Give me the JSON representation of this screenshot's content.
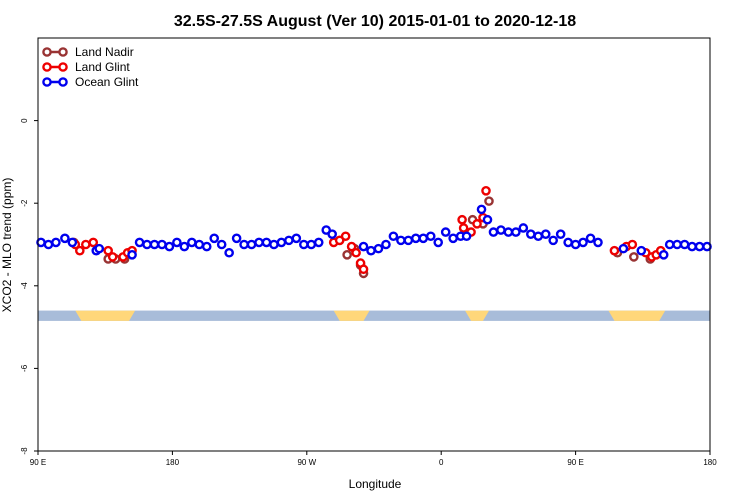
{
  "chart_data": {
    "type": "scatter",
    "title": "32.5S-27.5S August (Ver 10)   2015-01-01 to 2020-12-18",
    "xlabel": "Longitude",
    "ylabel": "XCO2 - MLO trend (ppm)",
    "x_ticks": [
      {
        "value": 90,
        "label": "90 E"
      },
      {
        "value": 180,
        "label": "180"
      },
      {
        "value": 270,
        "label": "90 W"
      },
      {
        "value": 360,
        "label": "0"
      },
      {
        "value": 450,
        "label": "90 E"
      },
      {
        "value": 540,
        "label": "180"
      }
    ],
    "y_ticks": [
      {
        "value": 0,
        "label": "0"
      },
      {
        "value": -2,
        "label": "-2"
      },
      {
        "value": -4,
        "label": "-4"
      },
      {
        "value": -6,
        "label": "-6"
      },
      {
        "value": -8,
        "label": "-8"
      }
    ],
    "xlim": [
      90,
      540
    ],
    "ylim": [
      -8,
      2
    ],
    "legend_position": "top-left",
    "land_mask": {
      "y_range": [
        -4.85,
        -4.6
      ],
      "ocean_color": "#a8bcd9",
      "land_color": "#ffd77a",
      "land_segments": [
        [
          115,
          155
        ],
        [
          288,
          312
        ],
        [
          376,
          392
        ],
        [
          472,
          510
        ]
      ]
    },
    "series": [
      {
        "name": "Land Nadir",
        "color": "#993333",
        "points": [
          [
            114,
            -2.95
          ],
          [
            137,
            -3.35
          ],
          [
            142,
            -3.35
          ],
          [
            148,
            -3.35
          ],
          [
            152,
            -3.2
          ],
          [
            292,
            -2.9
          ],
          [
            297,
            -3.25
          ],
          [
            302,
            -3.1
          ],
          [
            306,
            -3.5
          ],
          [
            308,
            -3.7
          ],
          [
            381,
            -2.4
          ],
          [
            388,
            -2.5
          ],
          [
            392,
            -1.95
          ],
          [
            478,
            -3.2
          ],
          [
            489,
            -3.3
          ],
          [
            500,
            -3.35
          ]
        ]
      },
      {
        "name": "Land Glint",
        "color": "#ee0000",
        "points": [
          [
            115,
            -3.0
          ],
          [
            118,
            -3.15
          ],
          [
            122,
            -3.0
          ],
          [
            127,
            -2.95
          ],
          [
            137,
            -3.15
          ],
          [
            140,
            -3.3
          ],
          [
            147,
            -3.3
          ],
          [
            150,
            -3.2
          ],
          [
            153,
            -3.15
          ],
          [
            288,
            -2.95
          ],
          [
            292,
            -2.9
          ],
          [
            296,
            -2.8
          ],
          [
            300,
            -3.05
          ],
          [
            303,
            -3.2
          ],
          [
            306,
            -3.45
          ],
          [
            308,
            -3.6
          ],
          [
            374,
            -2.4
          ],
          [
            375,
            -2.6
          ],
          [
            380,
            -2.7
          ],
          [
            384,
            -2.5
          ],
          [
            388,
            -2.35
          ],
          [
            390,
            -1.7
          ],
          [
            476,
            -3.15
          ],
          [
            484,
            -3.05
          ],
          [
            488,
            -3.0
          ],
          [
            497,
            -3.2
          ],
          [
            501,
            -3.3
          ],
          [
            504,
            -3.25
          ],
          [
            507,
            -3.15
          ]
        ]
      },
      {
        "name": "Ocean Glint",
        "color": "#0000ee",
        "points": [
          [
            92,
            -2.95
          ],
          [
            97,
            -3.0
          ],
          [
            102,
            -2.95
          ],
          [
            108,
            -2.85
          ],
          [
            113,
            -2.95
          ],
          [
            129,
            -3.15
          ],
          [
            131,
            -3.1
          ],
          [
            153,
            -3.25
          ],
          [
            158,
            -2.95
          ],
          [
            163,
            -3.0
          ],
          [
            168,
            -3.0
          ],
          [
            173,
            -3.0
          ],
          [
            178,
            -3.05
          ],
          [
            183,
            -2.95
          ],
          [
            188,
            -3.05
          ],
          [
            193,
            -2.95
          ],
          [
            198,
            -3.0
          ],
          [
            203,
            -3.05
          ],
          [
            208,
            -2.85
          ],
          [
            213,
            -3.0
          ],
          [
            218,
            -3.2
          ],
          [
            223,
            -2.85
          ],
          [
            228,
            -3.0
          ],
          [
            233,
            -3.0
          ],
          [
            238,
            -2.95
          ],
          [
            243,
            -2.95
          ],
          [
            248,
            -3.0
          ],
          [
            253,
            -2.95
          ],
          [
            258,
            -2.9
          ],
          [
            263,
            -2.85
          ],
          [
            268,
            -3.0
          ],
          [
            273,
            -3.0
          ],
          [
            278,
            -2.95
          ],
          [
            283,
            -2.65
          ],
          [
            287,
            -2.75
          ],
          [
            308,
            -3.05
          ],
          [
            313,
            -3.15
          ],
          [
            318,
            -3.1
          ],
          [
            323,
            -3.0
          ],
          [
            328,
            -2.8
          ],
          [
            333,
            -2.9
          ],
          [
            338,
            -2.9
          ],
          [
            343,
            -2.85
          ],
          [
            348,
            -2.85
          ],
          [
            353,
            -2.8
          ],
          [
            358,
            -2.95
          ],
          [
            363,
            -2.7
          ],
          [
            368,
            -2.85
          ],
          [
            373,
            -2.8
          ],
          [
            377,
            -2.8
          ],
          [
            387,
            -2.15
          ],
          [
            391,
            -2.4
          ],
          [
            395,
            -2.7
          ],
          [
            400,
            -2.65
          ],
          [
            405,
            -2.7
          ],
          [
            410,
            -2.7
          ],
          [
            415,
            -2.6
          ],
          [
            420,
            -2.75
          ],
          [
            425,
            -2.8
          ],
          [
            430,
            -2.75
          ],
          [
            435,
            -2.9
          ],
          [
            440,
            -2.75
          ],
          [
            445,
            -2.95
          ],
          [
            450,
            -3.0
          ],
          [
            455,
            -2.95
          ],
          [
            460,
            -2.85
          ],
          [
            465,
            -2.95
          ],
          [
            482,
            -3.1
          ],
          [
            494,
            -3.15
          ],
          [
            509,
            -3.25
          ],
          [
            513,
            -3.0
          ],
          [
            518,
            -3.0
          ],
          [
            523,
            -3.0
          ],
          [
            528,
            -3.05
          ],
          [
            533,
            -3.05
          ],
          [
            538,
            -3.05
          ]
        ]
      }
    ]
  }
}
